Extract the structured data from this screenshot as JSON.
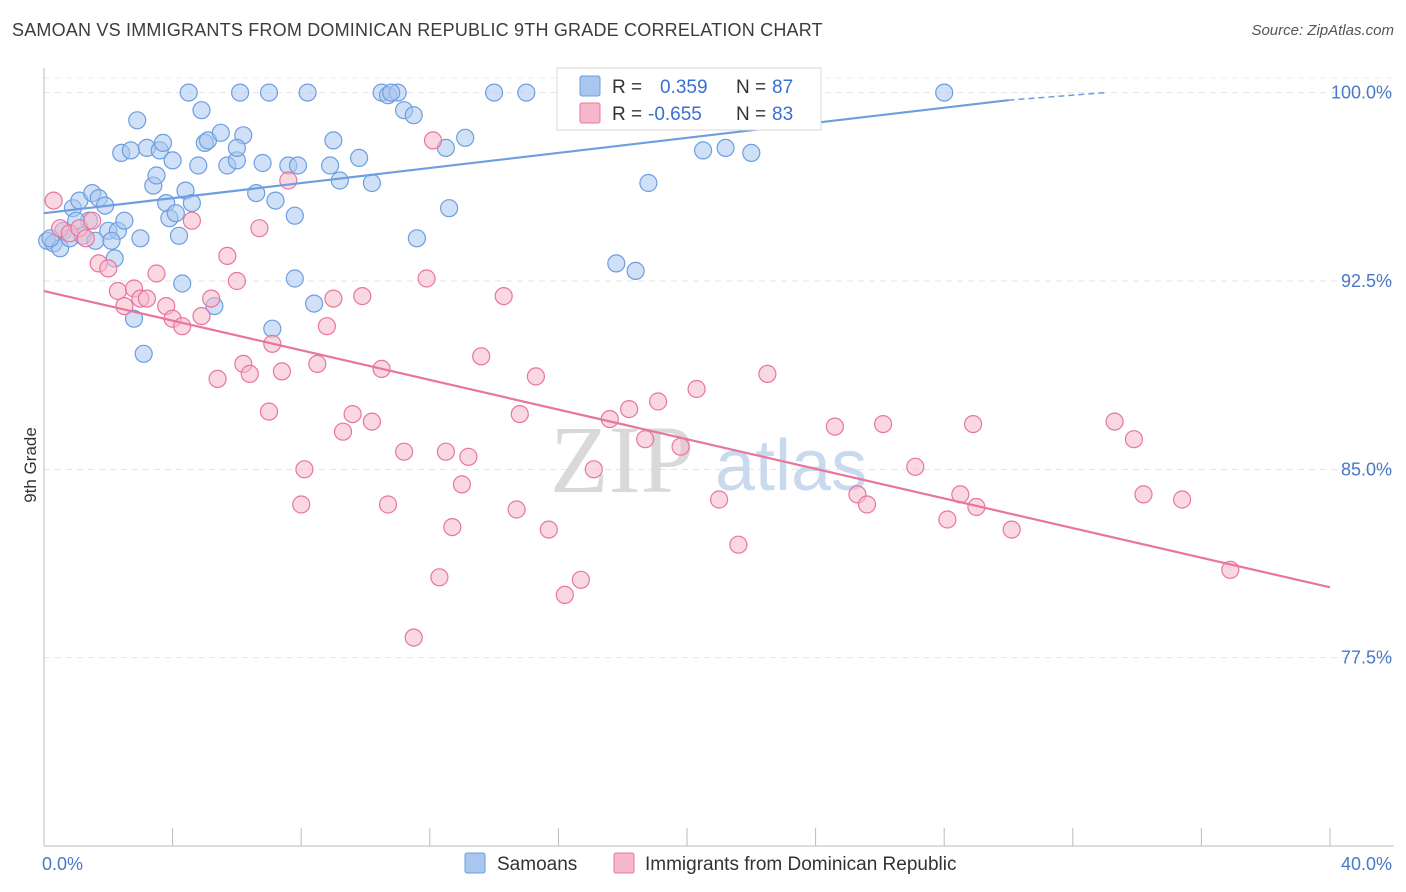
{
  "header": {
    "title": "SAMOAN VS IMMIGRANTS FROM DOMINICAN REPUBLIC 9TH GRADE CORRELATION CHART",
    "source": "Source: ZipAtlas.com"
  },
  "watermark": {
    "zip": "ZIP",
    "atlas": "atlas"
  },
  "legend_box": {
    "rows": [
      {
        "r_label": "R =",
        "r_value": "0.359",
        "n_label": "N =",
        "n_value": "87",
        "color": "#a9c6ee"
      },
      {
        "r_label": "R =",
        "r_value": "-0.655",
        "n_label": "N =",
        "n_value": "83",
        "color": "#f5b8cb"
      }
    ]
  },
  "bottom_legend": [
    {
      "label": "Samoans",
      "color": "#a9c6ee"
    },
    {
      "label": "Immigrants from Dominican Republic",
      "color": "#f5b8cb"
    }
  ],
  "chart_data": {
    "type": "scatter",
    "title": "SAMOAN VS IMMIGRANTS FROM DOMINICAN REPUBLIC 9TH GRADE CORRELATION CHART",
    "xlabel": "",
    "ylabel": "9th Grade",
    "xlim": [
      0,
      40
    ],
    "ylim": [
      70.0,
      101.3
    ],
    "x_tick_labels": [
      "0.0%",
      "40.0%"
    ],
    "y_ticks": [
      77.5,
      85.0,
      92.5,
      100.0
    ],
    "y_tick_labels": [
      "77.5%",
      "85.0%",
      "92.5%",
      "100.0%"
    ],
    "grid": true,
    "legend_position": "top-center",
    "series": [
      {
        "name": "Samoans",
        "color": "#6d9ee0",
        "fill": "#a9c6ee",
        "trend": {
          "x": [
            0,
            30,
            33
          ],
          "y": [
            95.2,
            99.7,
            100.0
          ]
        },
        "points": [
          [
            0.1,
            94.1
          ],
          [
            0.3,
            94.0
          ],
          [
            0.5,
            93.8
          ],
          [
            0.6,
            94.5
          ],
          [
            0.8,
            94.2
          ],
          [
            0.9,
            95.4
          ],
          [
            1.1,
            95.7
          ],
          [
            1.2,
            94.3
          ],
          [
            1.4,
            94.9
          ],
          [
            1.5,
            96.0
          ],
          [
            1.6,
            94.1
          ],
          [
            1.7,
            95.8
          ],
          [
            1.9,
            95.5
          ],
          [
            2.0,
            94.5
          ],
          [
            2.2,
            93.4
          ],
          [
            2.3,
            94.5
          ],
          [
            2.4,
            97.6
          ],
          [
            2.5,
            94.9
          ],
          [
            2.7,
            97.7
          ],
          [
            2.8,
            91.0
          ],
          [
            2.9,
            98.9
          ],
          [
            3.0,
            94.2
          ],
          [
            3.1,
            89.6
          ],
          [
            3.2,
            97.8
          ],
          [
            3.4,
            96.3
          ],
          [
            3.5,
            96.7
          ],
          [
            3.6,
            97.7
          ],
          [
            3.7,
            98.0
          ],
          [
            3.8,
            95.6
          ],
          [
            3.9,
            95.0
          ],
          [
            4.0,
            97.3
          ],
          [
            4.1,
            95.2
          ],
          [
            4.2,
            94.3
          ],
          [
            4.3,
            92.4
          ],
          [
            4.4,
            96.1
          ],
          [
            4.5,
            100.0
          ],
          [
            4.6,
            95.6
          ],
          [
            4.8,
            97.1
          ],
          [
            4.9,
            99.3
          ],
          [
            5.0,
            98.0
          ],
          [
            5.1,
            98.1
          ],
          [
            5.3,
            91.5
          ],
          [
            5.5,
            98.4
          ],
          [
            5.7,
            97.1
          ],
          [
            6.0,
            97.3
          ],
          [
            6.1,
            100.0
          ],
          [
            6.2,
            98.3
          ],
          [
            6.6,
            96.0
          ],
          [
            6.8,
            97.2
          ],
          [
            7.0,
            100.0
          ],
          [
            7.1,
            90.6
          ],
          [
            7.2,
            95.7
          ],
          [
            7.6,
            97.1
          ],
          [
            7.8,
            95.1
          ],
          [
            7.8,
            92.6
          ],
          [
            7.9,
            97.1
          ],
          [
            8.2,
            100.0
          ],
          [
            8.4,
            91.6
          ],
          [
            8.9,
            97.1
          ],
          [
            9.0,
            98.1
          ],
          [
            9.2,
            96.5
          ],
          [
            9.8,
            97.4
          ],
          [
            10.2,
            96.4
          ],
          [
            10.5,
            100.0
          ],
          [
            10.7,
            99.9
          ],
          [
            11.0,
            100.0
          ],
          [
            11.2,
            99.3
          ],
          [
            11.5,
            99.1
          ],
          [
            11.6,
            94.2
          ],
          [
            12.5,
            97.8
          ],
          [
            12.6,
            95.4
          ],
          [
            13.1,
            98.2
          ],
          [
            14.0,
            100.0
          ],
          [
            15.0,
            100.0
          ],
          [
            16.5,
            100.0
          ],
          [
            17.8,
            93.2
          ],
          [
            18.4,
            92.9
          ],
          [
            18.8,
            96.4
          ],
          [
            20.5,
            97.7
          ],
          [
            21.2,
            97.8
          ],
          [
            22.0,
            97.6
          ],
          [
            28.0,
            100.0
          ],
          [
            1.0,
            94.9
          ],
          [
            0.2,
            94.2
          ],
          [
            6.0,
            97.8
          ],
          [
            2.1,
            94.1
          ],
          [
            10.8,
            100.0
          ]
        ]
      },
      {
        "name": "Immigrants from Dominican Republic",
        "color": "#e8769c",
        "fill": "#f5b8cb",
        "trend": {
          "x": [
            0,
            40
          ],
          "y": [
            92.1,
            80.3
          ]
        },
        "points": [
          [
            0.3,
            95.7
          ],
          [
            0.5,
            94.6
          ],
          [
            0.8,
            94.4
          ],
          [
            1.1,
            94.6
          ],
          [
            1.3,
            94.2
          ],
          [
            1.5,
            94.9
          ],
          [
            1.7,
            93.2
          ],
          [
            2.0,
            93.0
          ],
          [
            2.3,
            92.1
          ],
          [
            2.5,
            91.5
          ],
          [
            2.8,
            92.2
          ],
          [
            3.0,
            91.8
          ],
          [
            3.2,
            91.8
          ],
          [
            3.5,
            92.8
          ],
          [
            3.8,
            91.5
          ],
          [
            4.0,
            91.0
          ],
          [
            4.3,
            90.7
          ],
          [
            4.6,
            94.9
          ],
          [
            4.9,
            91.1
          ],
          [
            5.2,
            91.8
          ],
          [
            5.4,
            88.6
          ],
          [
            5.7,
            93.5
          ],
          [
            6.0,
            92.5
          ],
          [
            6.2,
            89.2
          ],
          [
            6.4,
            88.8
          ],
          [
            6.7,
            94.6
          ],
          [
            7.0,
            87.3
          ],
          [
            7.1,
            90.0
          ],
          [
            7.4,
            88.9
          ],
          [
            7.6,
            96.5
          ],
          [
            8.1,
            85.0
          ],
          [
            8.0,
            83.6
          ],
          [
            8.5,
            89.2
          ],
          [
            8.8,
            90.7
          ],
          [
            9.0,
            91.8
          ],
          [
            9.3,
            86.5
          ],
          [
            9.6,
            87.2
          ],
          [
            9.9,
            91.9
          ],
          [
            10.2,
            86.9
          ],
          [
            10.5,
            89.0
          ],
          [
            10.7,
            83.6
          ],
          [
            11.2,
            85.7
          ],
          [
            11.5,
            78.3
          ],
          [
            11.9,
            92.6
          ],
          [
            12.1,
            98.1
          ],
          [
            12.3,
            80.7
          ],
          [
            12.5,
            85.7
          ],
          [
            12.7,
            82.7
          ],
          [
            13.0,
            84.4
          ],
          [
            13.2,
            85.5
          ],
          [
            13.6,
            89.5
          ],
          [
            14.3,
            91.9
          ],
          [
            14.7,
            83.4
          ],
          [
            14.8,
            87.2
          ],
          [
            15.3,
            88.7
          ],
          [
            15.7,
            82.6
          ],
          [
            16.2,
            80.0
          ],
          [
            16.7,
            80.6
          ],
          [
            17.1,
            85.0
          ],
          [
            17.6,
            87.0
          ],
          [
            18.2,
            87.4
          ],
          [
            18.7,
            86.2
          ],
          [
            19.1,
            87.7
          ],
          [
            19.8,
            85.9
          ],
          [
            20.3,
            88.2
          ],
          [
            21.0,
            83.8
          ],
          [
            21.6,
            82.0
          ],
          [
            22.5,
            88.8
          ],
          [
            24.6,
            86.7
          ],
          [
            25.3,
            84.0
          ],
          [
            25.6,
            83.6
          ],
          [
            26.1,
            86.8
          ],
          [
            27.1,
            85.1
          ],
          [
            28.1,
            83.0
          ],
          [
            28.5,
            84.0
          ],
          [
            28.9,
            86.8
          ],
          [
            29.0,
            83.5
          ],
          [
            30.1,
            82.6
          ],
          [
            33.3,
            86.9
          ],
          [
            33.9,
            86.2
          ],
          [
            34.2,
            84.0
          ],
          [
            35.4,
            83.8
          ],
          [
            36.9,
            81.0
          ]
        ]
      }
    ]
  }
}
